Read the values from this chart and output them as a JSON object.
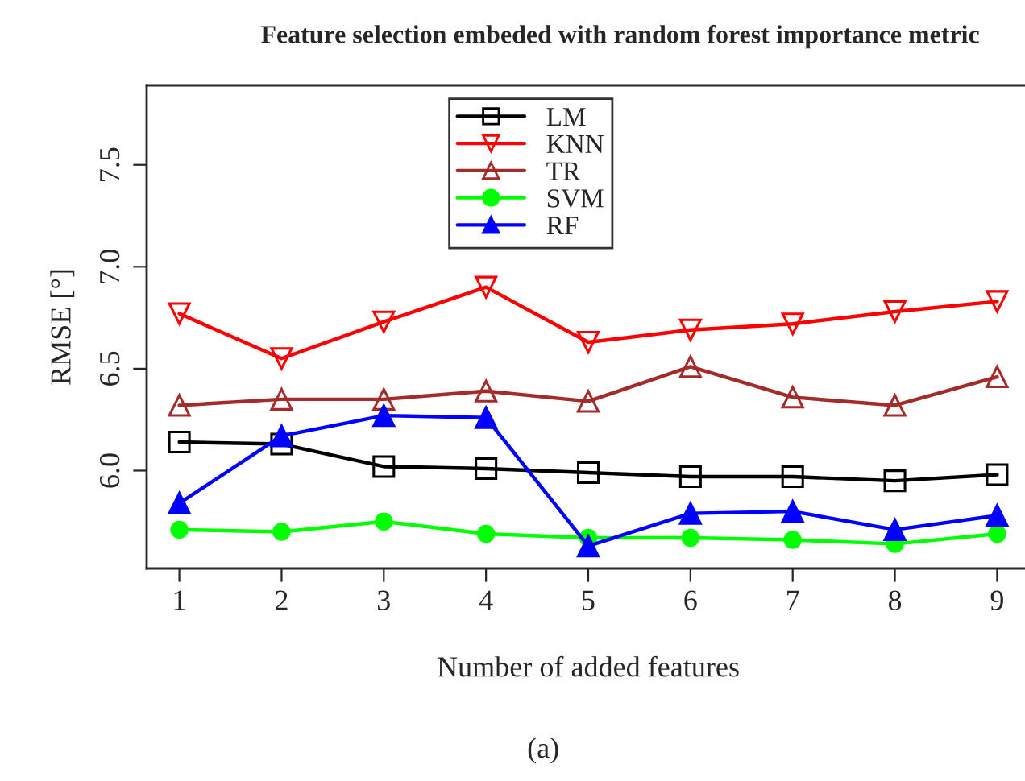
{
  "chart_data": {
    "type": "line",
    "title": "Feature selection embeded with random forest importance metric",
    "xlabel": "Number of added features",
    "ylabel": "RMSE [°]",
    "x": [
      1,
      2,
      3,
      4,
      5,
      6,
      7,
      8,
      9
    ],
    "series": [
      {
        "name": "LM",
        "color": "#000000",
        "marker": "square",
        "values": [
          6.14,
          6.13,
          6.02,
          6.01,
          5.99,
          5.97,
          5.97,
          5.95,
          5.98
        ]
      },
      {
        "name": "KNN",
        "color": "#ff0000",
        "marker": "triangle_down",
        "values": [
          6.77,
          6.55,
          6.73,
          6.9,
          6.63,
          6.69,
          6.72,
          6.78,
          6.83
        ]
      },
      {
        "name": "TR",
        "color": "#a52a2a",
        "marker": "triangle",
        "values": [
          6.32,
          6.35,
          6.35,
          6.39,
          6.34,
          6.51,
          6.36,
          6.32,
          6.46
        ]
      },
      {
        "name": "SVM",
        "color": "#00ff00",
        "marker": "circle",
        "values": [
          5.71,
          5.7,
          5.75,
          5.69,
          5.67,
          5.67,
          5.66,
          5.64,
          5.69
        ]
      },
      {
        "name": "RF",
        "color": "#0000ff",
        "marker": "triangle",
        "values": [
          5.84,
          6.17,
          6.27,
          6.26,
          5.63,
          5.79,
          5.8,
          5.71,
          5.78
        ]
      }
    ],
    "xlim": [
      0.68,
      9.32
    ],
    "ylim": [
      5.52,
      7.89
    ],
    "xticks": [
      1,
      2,
      3,
      4,
      5,
      6,
      7,
      8,
      9
    ],
    "yticks": [
      {
        "value": 6.0,
        "label": "6.0"
      },
      {
        "value": 6.5,
        "label": "6.5"
      },
      {
        "value": 7.0,
        "label": "7.0"
      },
      {
        "value": 7.5,
        "label": "7.5"
      }
    ],
    "grid": false,
    "legend": "top",
    "line_style": "solid",
    "annotations": [
      "(a)"
    ]
  }
}
